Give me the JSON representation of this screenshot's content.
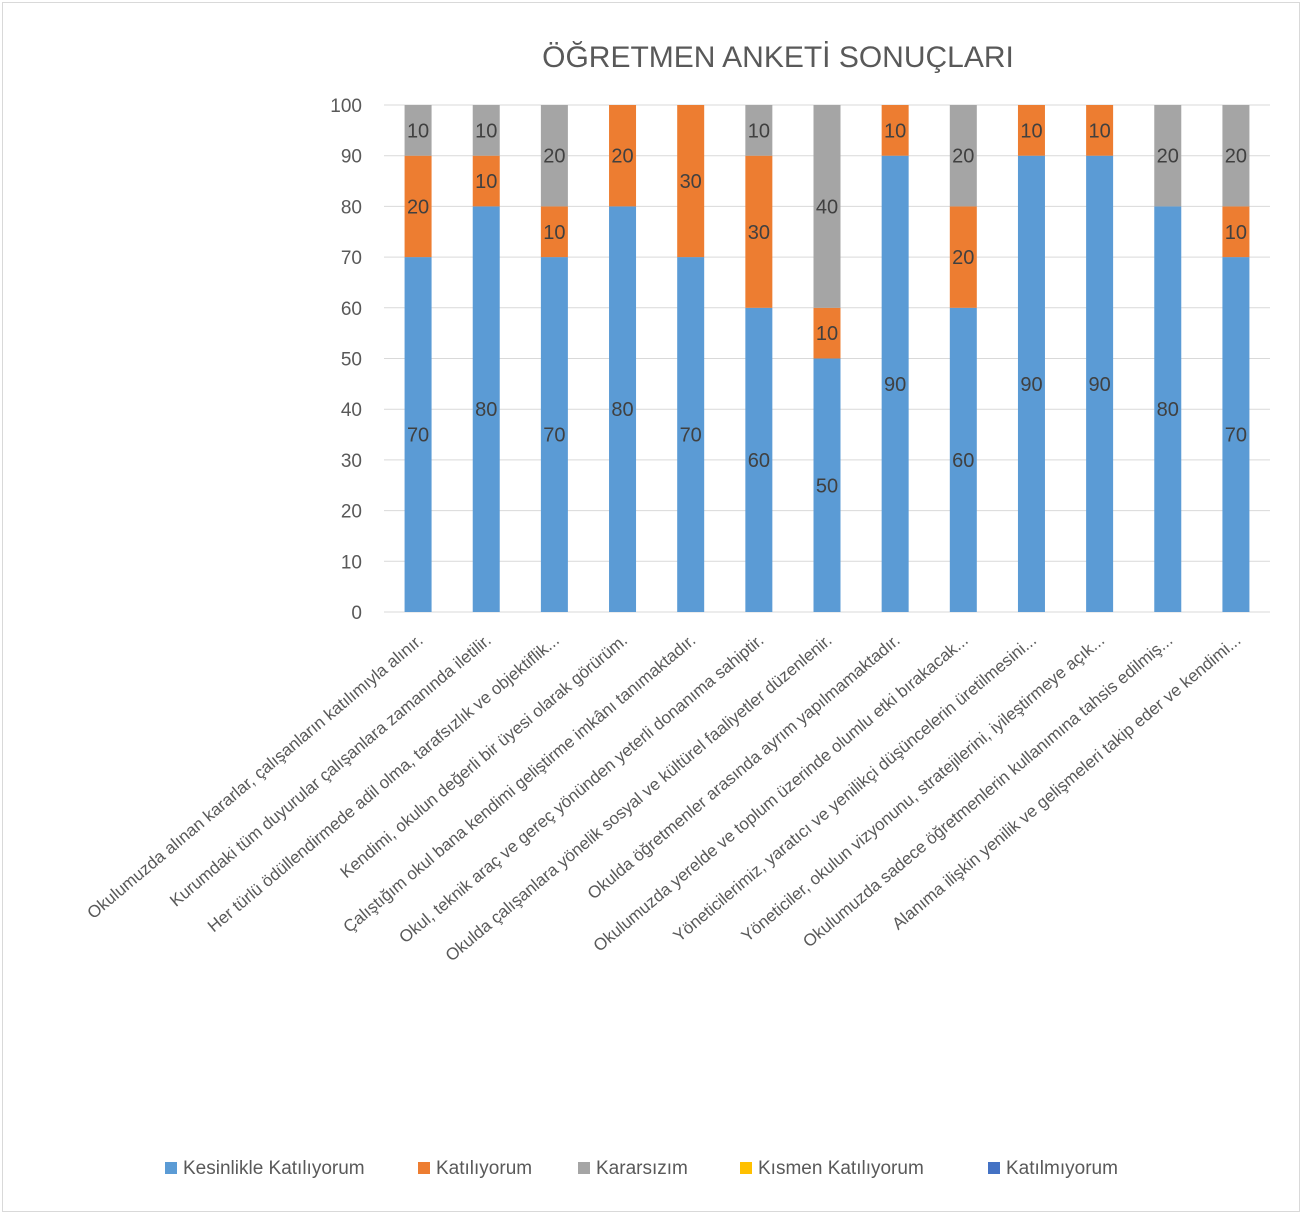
{
  "chart_data": {
    "type": "bar",
    "stacked": true,
    "title": "ÖĞRETMEN ANKETİ SONUÇLARI",
    "xlabel": "",
    "ylabel": "",
    "ylim": [
      0,
      100
    ],
    "yticks": [
      0,
      10,
      20,
      30,
      40,
      50,
      60,
      70,
      80,
      90,
      100
    ],
    "grid": true,
    "legend_position": "bottom",
    "categories": [
      "Okulumuzda alınan kararlar, çalışanların katılımıyla alınır.",
      "Kurumdaki tüm duyurular çalışanlara zamanında iletilir.",
      "Her türlü ödüllendirmede adil olma, tarafsızlık ve objektiflik...",
      "Kendimi, okulun değerli bir üyesi olarak görürüm.",
      "Çalıştığım okul bana kendimi geliştirme imkânı tanımaktadır.",
      "Okul, teknik araç ve gereç yönünden yeterli donanıma sahiptir.",
      "Okulda çalışanlara yönelik sosyal ve kültürel faaliyetler düzenlenir.",
      "Okulda öğretmenler arasında ayrım yapılmamaktadır.",
      "Okulumuzda yerelde ve toplum üzerinde olumlu etki bırakacak...",
      "Yöneticilerimiz, yaratıcı ve yenilikçi düşüncelerin üretilmesini...",
      "Yöneticiler, okulun vizyonunu, stratejilerini, iyileştirmeye açık...",
      "Okulumuzda sadece öğretmenlerin kullanımına tahsis edilmiş...",
      "Alanıma ilişkin yenilik ve gelişmeleri takip eder ve kendimi..."
    ],
    "series": [
      {
        "name": "Kesinlikle Katılıyorum",
        "color": "#5b9bd5",
        "values": [
          70,
          80,
          70,
          80,
          70,
          60,
          50,
          90,
          60,
          90,
          90,
          80,
          70
        ]
      },
      {
        "name": "Katılıyorum",
        "color": "#ed7d31",
        "values": [
          20,
          10,
          10,
          20,
          30,
          30,
          10,
          10,
          20,
          10,
          10,
          0,
          10
        ]
      },
      {
        "name": "Kararsızım",
        "color": "#a5a5a5",
        "values": [
          10,
          10,
          20,
          0,
          0,
          10,
          40,
          0,
          20,
          0,
          0,
          20,
          20
        ]
      },
      {
        "name": "Kısmen Katılıyorum",
        "color": "#ffc000",
        "values": [
          0,
          0,
          0,
          0,
          0,
          0,
          0,
          0,
          0,
          0,
          0,
          0,
          0
        ]
      },
      {
        "name": "Katılmıyorum",
        "color": "#4472c4",
        "values": [
          0,
          0,
          0,
          0,
          0,
          0,
          0,
          0,
          0,
          0,
          0,
          0,
          0
        ]
      }
    ]
  }
}
